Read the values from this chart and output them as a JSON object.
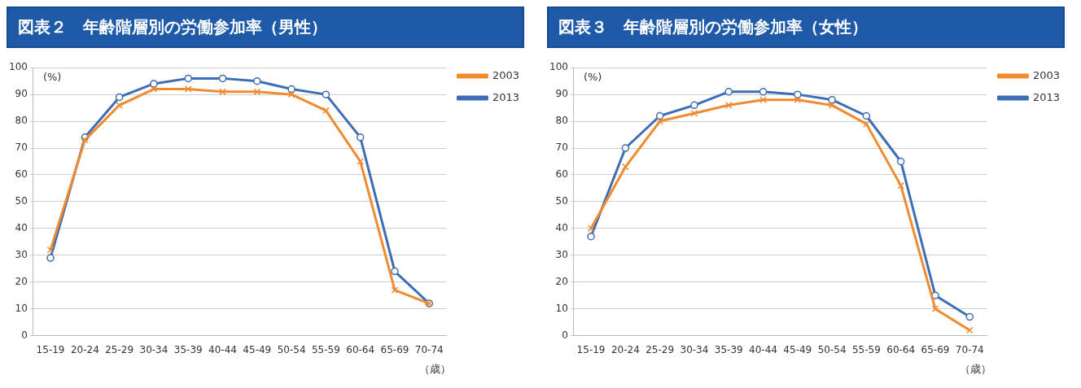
{
  "chart_data": [
    {
      "type": "line",
      "title": "図表２　年齢階層別の労働参加率（男性）",
      "ylabel": "(%)",
      "xlabel": "（歳）",
      "categories": [
        "15-19",
        "20-24",
        "25-29",
        "30-34",
        "35-39",
        "40-44",
        "45-49",
        "50-54",
        "55-59",
        "60-64",
        "65-69",
        "70-74"
      ],
      "ylim": [
        0,
        100
      ],
      "yticks": [
        0,
        10,
        20,
        30,
        40,
        50,
        60,
        70,
        80,
        90,
        100
      ],
      "grid": "y",
      "legend": "top right",
      "series": [
        {
          "name": "2003",
          "color": "#f28a30",
          "marker": "cross",
          "values": [
            32,
            73,
            86,
            92,
            92,
            91,
            91,
            90,
            84,
            65,
            17,
            12
          ]
        },
        {
          "name": "2013",
          "color": "#3d6db5",
          "marker": "circle",
          "values": [
            29,
            74,
            89,
            94,
            96,
            96,
            95,
            92,
            90,
            74,
            24,
            12
          ]
        }
      ]
    },
    {
      "type": "line",
      "title": "図表３　年齢階層別の労働参加率（女性）",
      "ylabel": "(%)",
      "xlabel": "（歳）",
      "categories": [
        "15-19",
        "20-24",
        "25-29",
        "30-34",
        "35-39",
        "40-44",
        "45-49",
        "50-54",
        "55-59",
        "60-64",
        "65-69",
        "70-74"
      ],
      "ylim": [
        0,
        100
      ],
      "yticks": [
        0,
        10,
        20,
        30,
        40,
        50,
        60,
        70,
        80,
        90,
        100
      ],
      "grid": "y",
      "legend": "top right",
      "series": [
        {
          "name": "2003",
          "color": "#f28a30",
          "marker": "cross",
          "values": [
            40,
            63,
            80,
            83,
            86,
            88,
            88,
            86,
            79,
            56,
            10,
            2
          ]
        },
        {
          "name": "2013",
          "color": "#3d6db5",
          "marker": "circle",
          "values": [
            37,
            70,
            82,
            86,
            91,
            91,
            90,
            88,
            82,
            65,
            15,
            7
          ]
        }
      ]
    }
  ]
}
